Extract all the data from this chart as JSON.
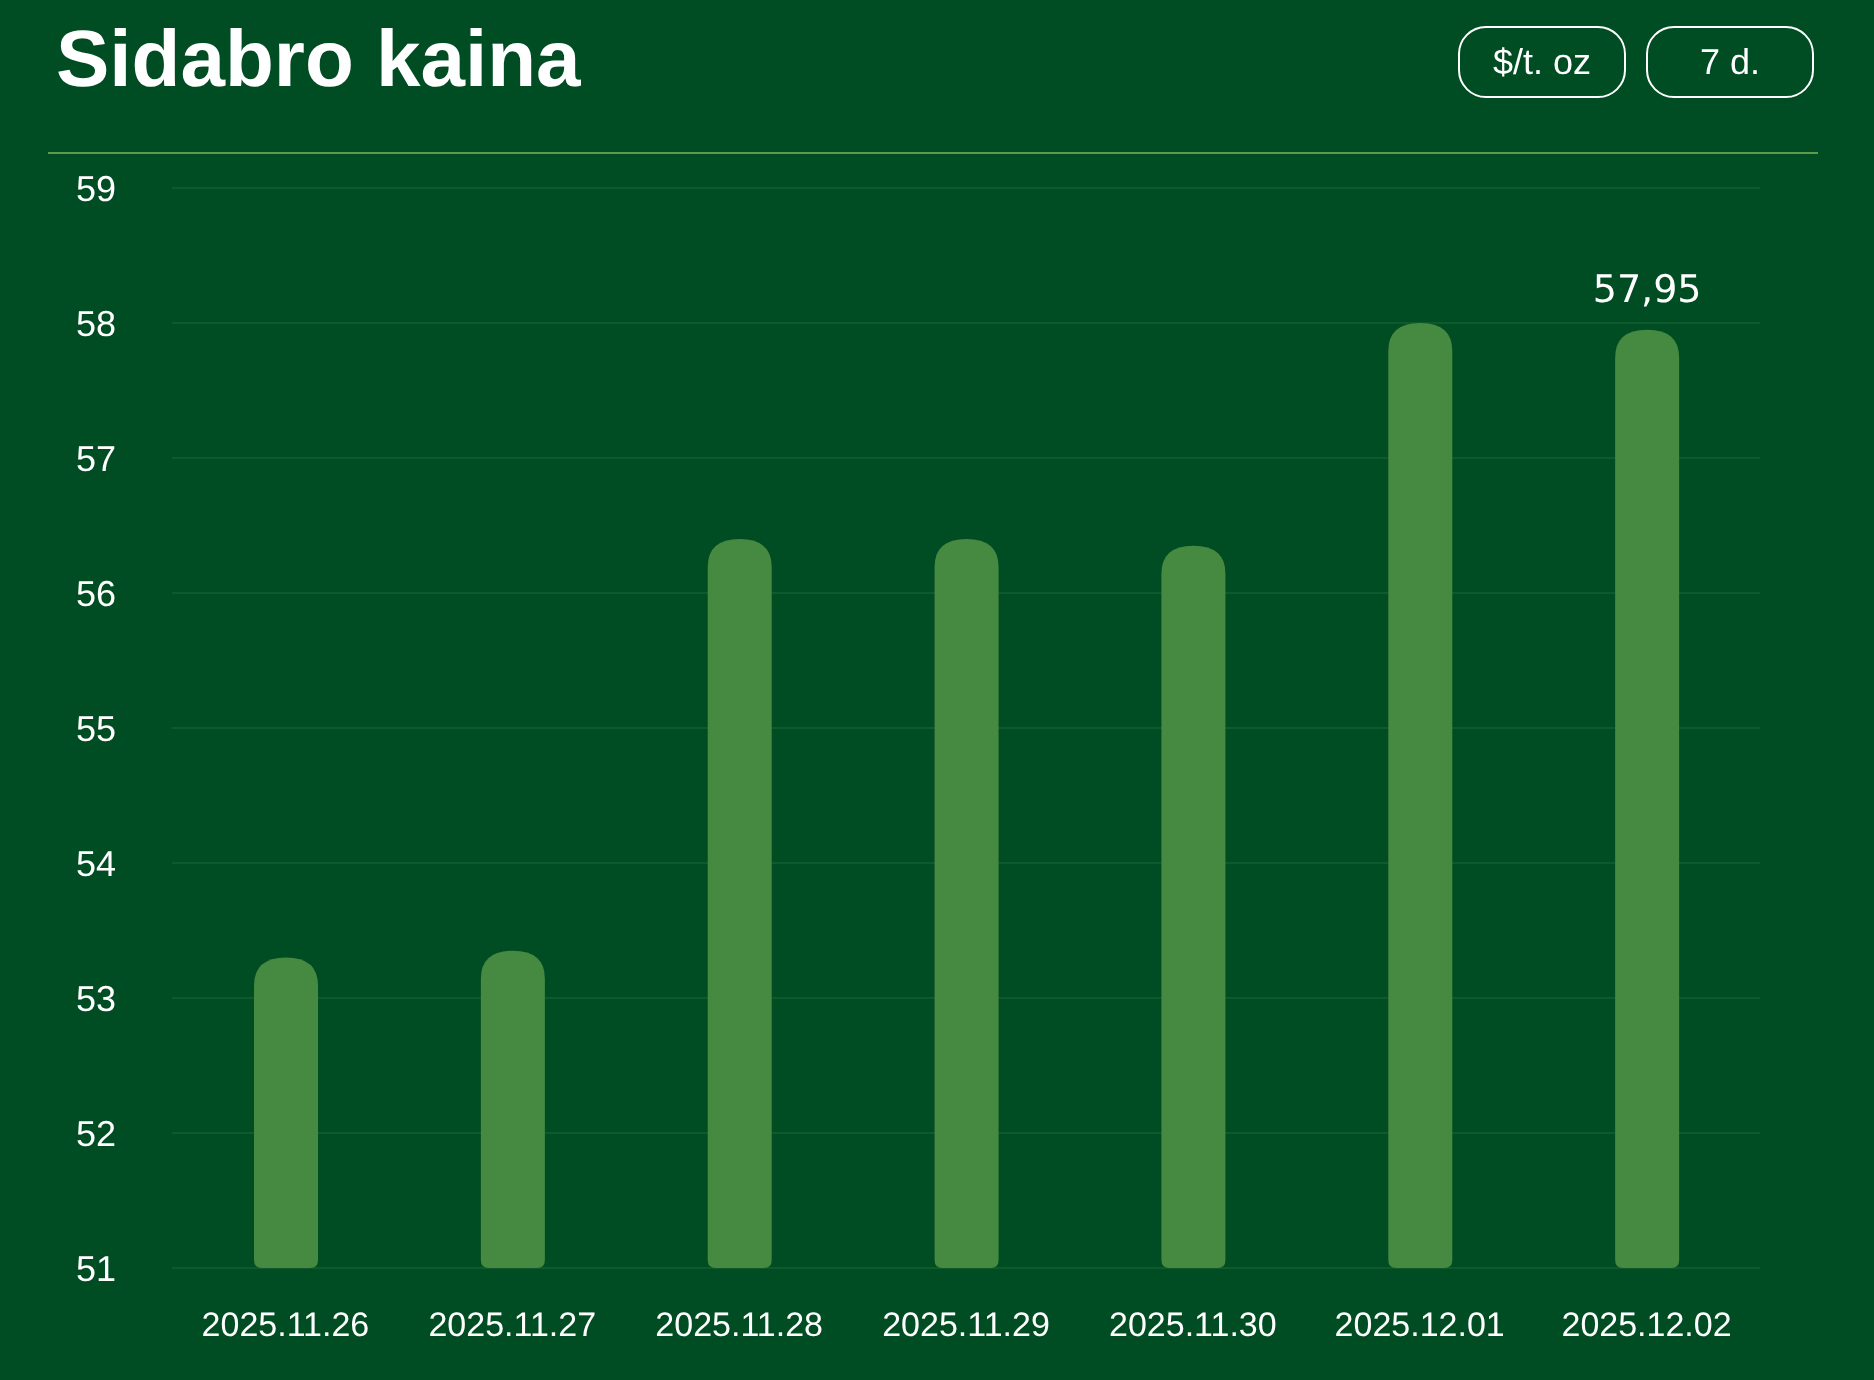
{
  "chart_data": {
    "type": "bar",
    "title": "Sidabro kaina",
    "annotations": [
      "$/t. oz",
      "7 d."
    ],
    "categories": [
      "2025.11.26",
      "2025.11.27",
      "2025.11.28",
      "2025.11.29",
      "2025.11.30",
      "2025.12.01",
      "2025.12.02"
    ],
    "values": [
      53.3,
      53.35,
      56.4,
      56.4,
      56.35,
      58.0,
      57.95
    ],
    "value_labels": [
      null,
      null,
      null,
      null,
      null,
      null,
      "57,95"
    ],
    "color": "#468940",
    "ylim": [
      51,
      59
    ],
    "yticks": [
      51,
      52,
      53,
      54,
      55,
      56,
      57,
      58,
      59
    ],
    "grid": "y"
  }
}
